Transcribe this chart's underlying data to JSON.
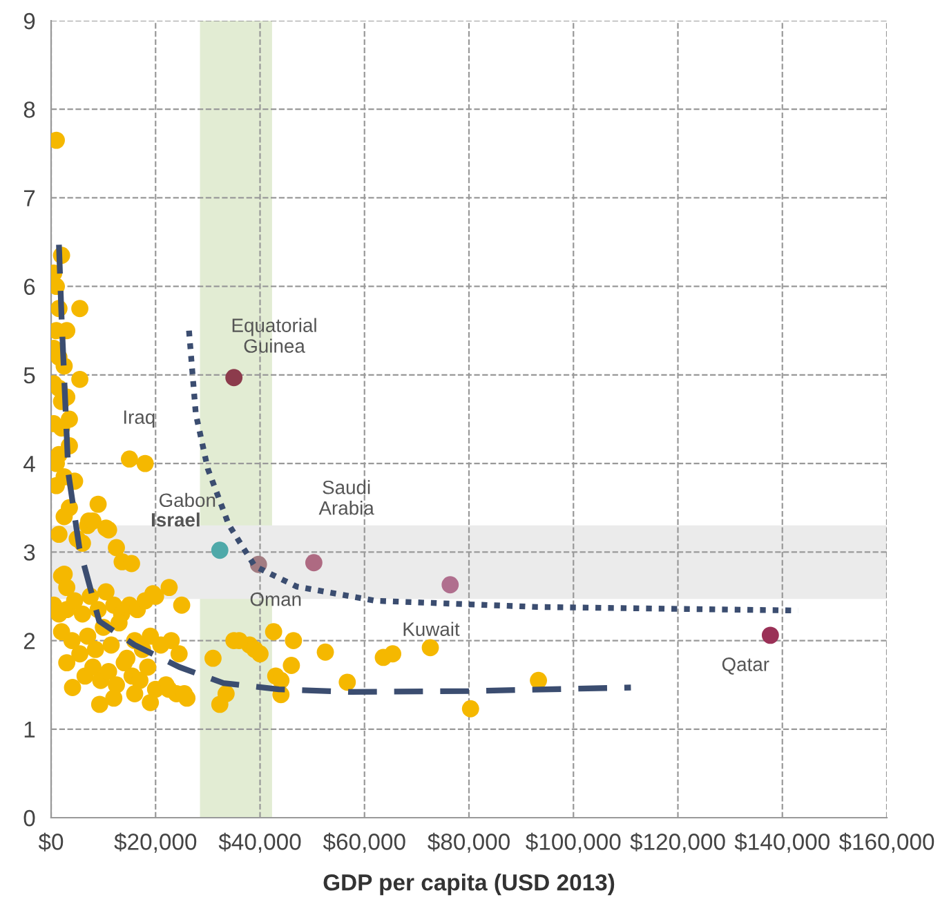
{
  "chart_data": {
    "type": "scatter",
    "xlabel": "GDP per capita (USD 2013)",
    "xlim": [
      0,
      160000
    ],
    "ylim": [
      0,
      9
    ],
    "xticks": [
      {
        "value": 0,
        "label": "$0"
      },
      {
        "value": 20000,
        "label": "$20,000"
      },
      {
        "value": 40000,
        "label": "$40,000"
      },
      {
        "value": 60000,
        "label": "$60,000"
      },
      {
        "value": 80000,
        "label": "$80,000"
      },
      {
        "value": 100000,
        "label": "$100,000"
      },
      {
        "value": 120000,
        "label": "$120,000"
      },
      {
        "value": 140000,
        "label": "$140,000"
      },
      {
        "value": 160000,
        "label": "$160,000"
      }
    ],
    "yticks": [
      0,
      1,
      2,
      3,
      4,
      5,
      6,
      7,
      8,
      9
    ],
    "grid": true,
    "marker": "circle",
    "bands": [
      {
        "axis": "x",
        "from": 28500,
        "to": 42300,
        "color": "#e2ecd3"
      },
      {
        "axis": "y",
        "from": 2.47,
        "to": 3.3,
        "color": "#ebebeb"
      }
    ],
    "series": [
      {
        "color": "#f5b800",
        "x": [
          1000,
          2000,
          500,
          1000,
          1500,
          5500,
          1000,
          3000,
          500,
          1500,
          2500,
          5500,
          500,
          1500,
          3000,
          2000,
          3500,
          500,
          2000,
          3500,
          1500,
          1000,
          2500,
          4500,
          1000,
          3500,
          9000,
          7200,
          10500,
          2500,
          7000,
          8000,
          11000,
          1500,
          5000,
          6000,
          12500,
          2500,
          13600,
          15400,
          22600,
          25000,
          19500,
          2000,
          3000,
          15000,
          18000,
          500,
          1500,
          3000,
          4500,
          6000,
          7500,
          9000,
          10500,
          12000,
          13500,
          15000,
          16500,
          18000,
          20000,
          2000,
          4000,
          5500,
          7000,
          8500,
          10000,
          11500,
          13000,
          14500,
          16000,
          17500,
          19000,
          21000,
          23000,
          24500,
          3000,
          6500,
          8000,
          9500,
          11000,
          12500,
          14000,
          15500,
          17000,
          18500,
          20000,
          22000,
          24000,
          26000,
          4100,
          9300,
          12000,
          16000,
          19000,
          22500,
          25500,
          31000,
          35000,
          38000,
          40000,
          42600,
          44000,
          46400,
          46000,
          36000,
          39000,
          43000,
          32300,
          33500,
          44000,
          52500,
          56700,
          63600,
          65400,
          72600,
          80300,
          93300
        ],
        "values": [
          7.65,
          6.35,
          6.15,
          6.0,
          5.75,
          5.75,
          5.5,
          5.5,
          5.3,
          5.2,
          5.1,
          4.95,
          4.9,
          4.85,
          4.75,
          4.7,
          4.5,
          4.45,
          4.4,
          4.2,
          4.1,
          4.0,
          3.85,
          3.8,
          3.75,
          3.5,
          3.54,
          3.35,
          3.27,
          3.4,
          3.3,
          3.35,
          3.25,
          3.2,
          3.15,
          3.1,
          3.05,
          2.75,
          2.89,
          2.87,
          2.6,
          2.4,
          2.53,
          2.73,
          2.6,
          4.05,
          4.0,
          2.4,
          2.3,
          2.35,
          2.45,
          2.3,
          2.5,
          2.35,
          2.55,
          2.4,
          2.3,
          2.4,
          2.35,
          2.45,
          2.5,
          2.1,
          2.0,
          1.85,
          2.05,
          1.9,
          2.15,
          1.95,
          2.2,
          1.8,
          2.0,
          1.9,
          2.05,
          1.95,
          2.0,
          1.85,
          1.75,
          1.6,
          1.7,
          1.55,
          1.65,
          1.5,
          1.75,
          1.6,
          1.55,
          1.7,
          1.45,
          1.5,
          1.4,
          1.35,
          1.47,
          1.28,
          1.35,
          1.4,
          1.3,
          1.45,
          1.4,
          1.8,
          2.0,
          1.95,
          1.85,
          2.1,
          1.39,
          2.0,
          1.72,
          2.0,
          1.9,
          1.6,
          1.28,
          1.4,
          1.55,
          1.87,
          1.53,
          1.81,
          1.85,
          1.92,
          1.23,
          1.55
        ]
      },
      {
        "colors": [
          "#8c3b4c",
          "#4fa9a9",
          "#a27c82",
          "#ae6a82",
          "#b06f8e",
          "#9a3157"
        ],
        "x": [
          35000,
          32300,
          39700,
          50300,
          76400,
          137700
        ],
        "values": [
          4.97,
          3.02,
          2.86,
          2.88,
          2.63,
          2.06
        ]
      },
      {
        "type": "line",
        "color": "#3b4d70",
        "line_style": "dashed",
        "marker": "none",
        "x": [
          1500,
          2000,
          3300,
          5400,
          9200,
          16000,
          24600,
          33000,
          43600,
          57000,
          80000,
          111000
        ],
        "values": [
          6.47,
          5.65,
          3.89,
          3.05,
          2.22,
          1.95,
          1.7,
          1.52,
          1.45,
          1.42,
          1.43,
          1.47
        ]
      },
      {
        "type": "line",
        "color": "#3b4d70",
        "line_style": "dotted",
        "marker": "none",
        "x": [
          26400,
          27700,
          30000,
          34000,
          39000,
          47000,
          62000,
          93000,
          143000
        ],
        "values": [
          5.5,
          4.56,
          3.94,
          3.31,
          2.84,
          2.61,
          2.45,
          2.38,
          2.34
        ]
      }
    ],
    "annotations": [
      {
        "text": "Equatorial\nGuinea",
        "x": 35000,
        "y": 4.97
      },
      {
        "text": "Iraq",
        "x": 15000,
        "y": 4.05
      },
      {
        "text": "Gabon",
        "x": 18000,
        "y": 4.0
      },
      {
        "text": "Israel",
        "x": 32300,
        "y": 3.02
      },
      {
        "text": "Oman",
        "x": 39700,
        "y": 2.86
      },
      {
        "text": "Saudi\nArabia",
        "x": 50300,
        "y": 2.88
      },
      {
        "text": "Kuwait",
        "x": 76400,
        "y": 2.63
      },
      {
        "text": "Qatar",
        "x": 137700,
        "y": 2.06
      }
    ]
  }
}
